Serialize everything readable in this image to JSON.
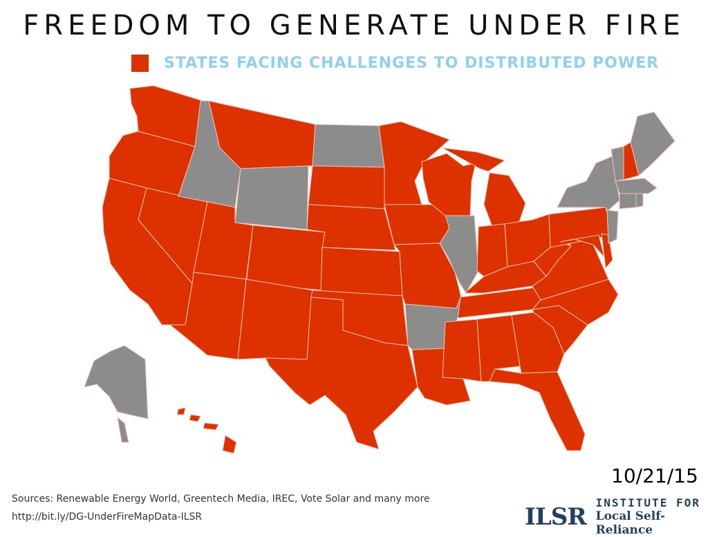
{
  "title": "FREEDOM TO GENERATE UNDER FIRE",
  "legend": {
    "label": "STATES FACING CHALLENGES TO DISTRIBUTED POWER",
    "color": "#dd3100"
  },
  "colors": {
    "challenged": "#dd3100",
    "other": "#8c8c8c",
    "border": "#f4c4b4",
    "legend_text": "#8fd0ef"
  },
  "date": "10/21/15",
  "footer": {
    "sources": "Sources: Renewable Energy World, Greentech Media, IREC, Vote Solar and many more",
    "link": "http://bit.ly/DG-UnderFireMapData-ILSR"
  },
  "logo": {
    "mark": "ILSR",
    "line1": "INSTITUTE FOR",
    "line2": "Local Self-Reliance"
  },
  "map": {
    "challenged_states": [
      "WA",
      "OR",
      "CA",
      "NV",
      "UT",
      "AZ",
      "MT",
      "CO",
      "NM",
      "SD",
      "NE",
      "KS",
      "OK",
      "TX",
      "MN",
      "IA",
      "MO",
      "WI",
      "MI",
      "IN",
      "OH",
      "KY",
      "TN",
      "MS",
      "AL",
      "GA",
      "FL",
      "SC",
      "NC",
      "VA",
      "WV",
      "PA",
      "NH",
      "MD",
      "DE",
      "HI",
      "LA"
    ],
    "other_states": [
      "AK",
      "ID",
      "WY",
      "ND",
      "IL",
      "AR",
      "ME",
      "VT",
      "NY",
      "MA",
      "CT",
      "RI",
      "NJ"
    ]
  }
}
